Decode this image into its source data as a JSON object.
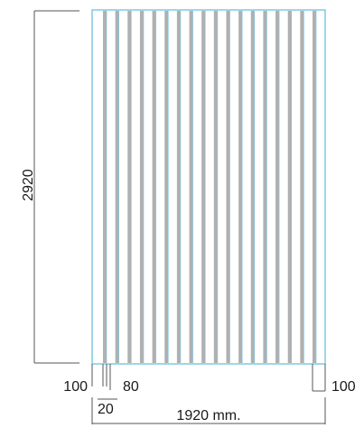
{
  "drawing": {
    "slat_count": 18,
    "labels": {
      "height": "2920",
      "width": "1920 mm.",
      "left_margin": "100",
      "right_margin": "100",
      "slat_width": "20",
      "slat_gap": "80"
    },
    "colors": {
      "frame": "#7ec8e3",
      "slat": "#b0b0b0",
      "dimension_line": "#555555",
      "text": "#1a1a1a"
    }
  }
}
